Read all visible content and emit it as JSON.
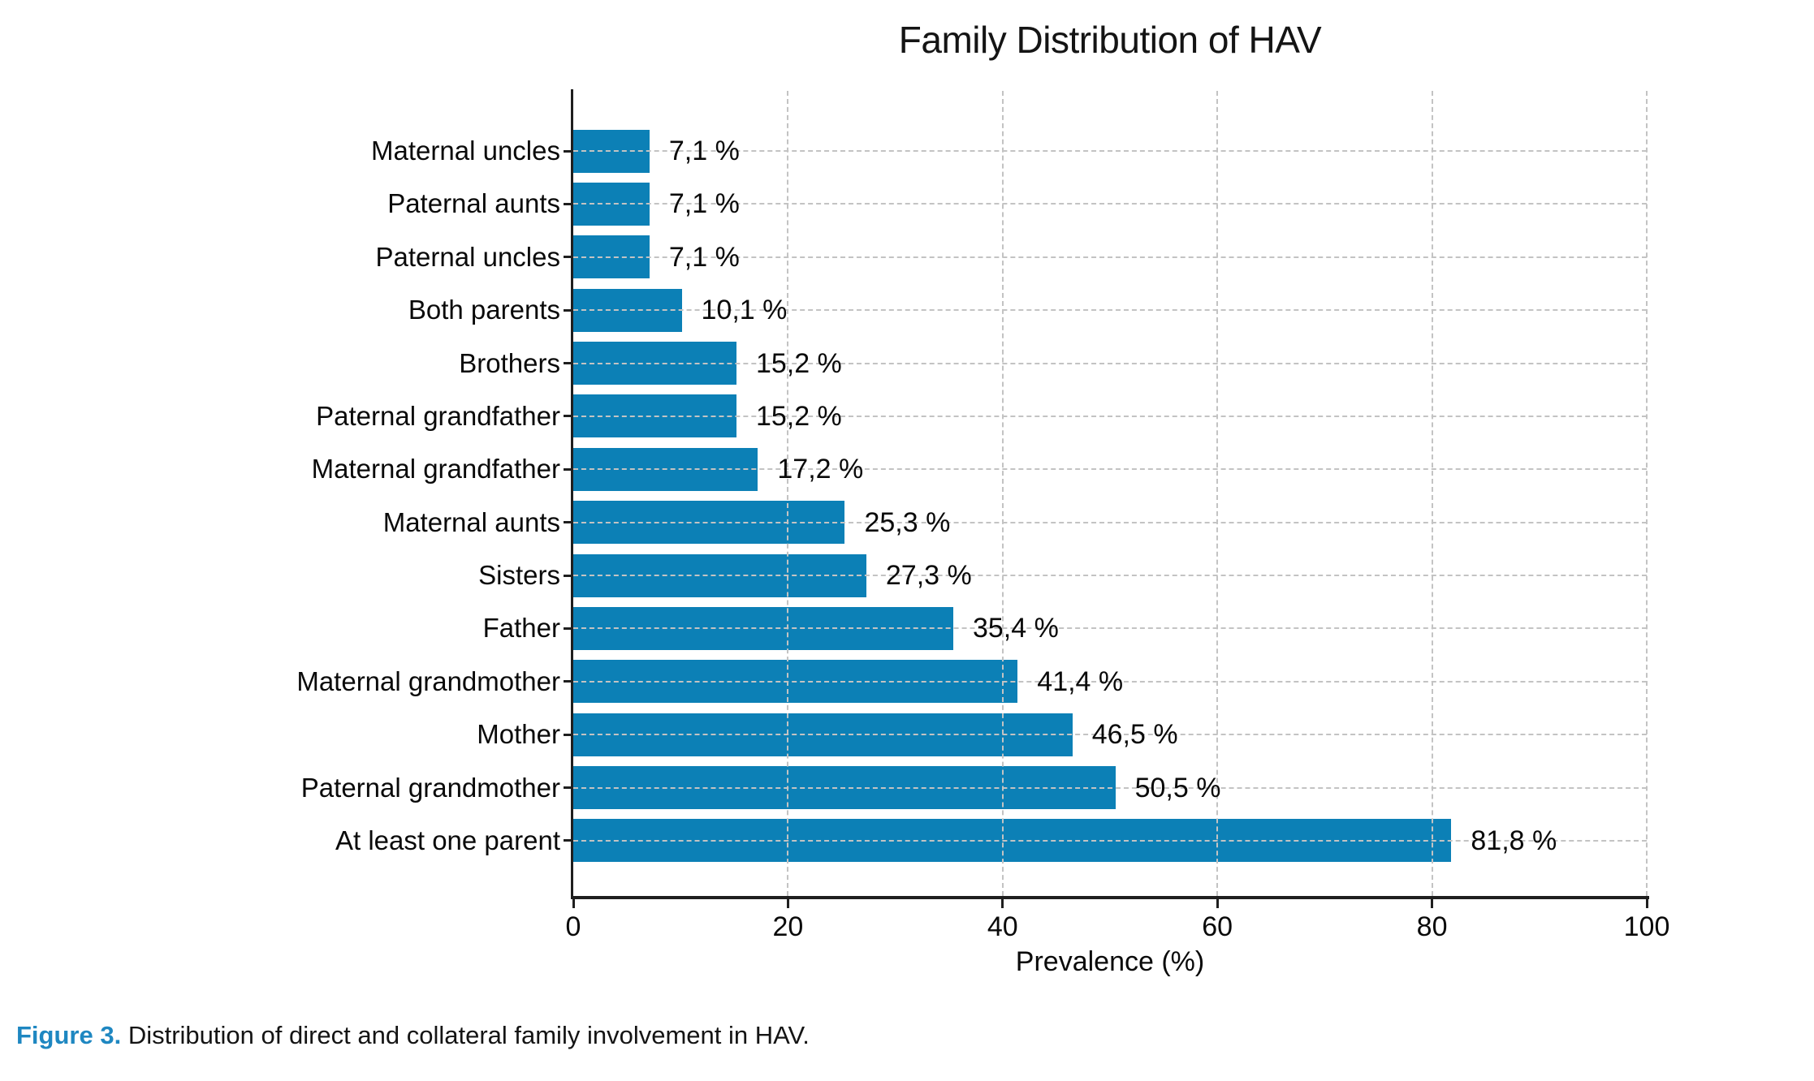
{
  "figure": {
    "caption_prefix": "Figure 3.",
    "caption_text": " Distribution of direct and collateral family involvement in HAV."
  },
  "colors": {
    "bar": "#0c80b6",
    "grid": "#c3c3c3",
    "axis": "#1f1f1f",
    "caption_accent": "#1e87c1"
  },
  "chart_data": {
    "type": "bar",
    "orientation": "horizontal",
    "title": "Family Distribution of HAV",
    "xlabel": "Prevalence (%)",
    "xlim": [
      0,
      100
    ],
    "x_ticks": [
      0,
      20,
      40,
      60,
      80,
      100
    ],
    "grid": "dashed gridlines on both axes",
    "legend": "none",
    "categories": [
      "Maternal uncles",
      "Paternal aunts",
      "Paternal uncles",
      "Both parents",
      "Brothers",
      "Paternal grandfather",
      "Maternal grandfather",
      "Maternal aunts",
      "Sisters",
      "Father",
      "Maternal grandmother",
      "Mother",
      "Paternal grandmother",
      "At least one parent"
    ],
    "values": [
      7.1,
      7.1,
      7.1,
      10.1,
      15.2,
      15.2,
      17.2,
      25.3,
      27.3,
      35.4,
      41.4,
      46.5,
      50.5,
      81.8
    ],
    "value_labels": [
      "7,1 %",
      "7,1 %",
      "7,1 %",
      "10,1 %",
      "15,2 %",
      "15,2 %",
      "17,2 %",
      "25,3 %",
      "27,3 %",
      "35,4 %",
      "41,4 %",
      "46,5 %",
      "50,5 %",
      "81,8 %"
    ]
  }
}
